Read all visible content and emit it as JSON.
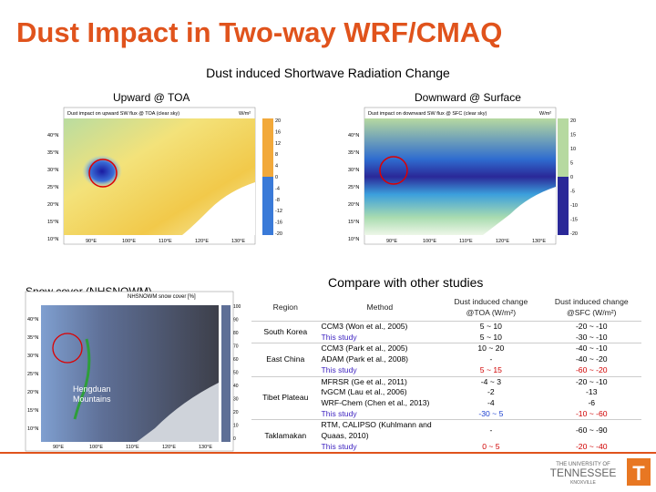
{
  "header": {
    "title": "Dust Impact in Two-way WRF/CMAQ",
    "subtitle": "Dust induced Shortwave Radiation Change"
  },
  "maps": {
    "toa": {
      "label": "Upward @ TOA",
      "caption": "Dust impact on upward SW flux @ TOA (clear sky)",
      "unit": "W/m²",
      "colorbar": [
        "20",
        "16",
        "12",
        "8",
        "4",
        "0",
        "-4",
        "-8",
        "-12",
        "-16",
        "-20"
      ]
    },
    "sfc": {
      "label": "Downward @ Surface",
      "caption": "Dust impact on downward SW flux @ SFC (clear sky)",
      "unit": "W/m²",
      "colorbar": [
        "20",
        "15",
        "10",
        "5",
        "0",
        "-5",
        "-10",
        "-15",
        "-20"
      ]
    },
    "lat_labels": [
      "40°N",
      "35°N",
      "30°N",
      "25°N",
      "20°N",
      "15°N",
      "10°N"
    ],
    "lon_labels": [
      "90°E",
      "100°E",
      "110°E",
      "120°E",
      "130°E"
    ],
    "snow": {
      "label": "Snow cover (NHSNOWM)",
      "caption": "NHSNOWM snow cover [%]",
      "annotation": [
        "Hengduan",
        "Mountains"
      ],
      "colorbar": [
        "100",
        "90",
        "80",
        "70",
        "60",
        "50",
        "40",
        "30",
        "20",
        "10",
        "0"
      ]
    }
  },
  "comparison": {
    "title": "Compare with other studies",
    "columns": [
      "Region",
      "Method",
      "Dust induced change @TOA (W/m²)",
      "Dust induced change @SFC (W/m²)"
    ],
    "rows": [
      {
        "region": "South Korea",
        "studies": [
          {
            "method": "CCM3 (Won et al., 2005)",
            "toa": "5 ~ 10",
            "sfc": "-20 ~ -10"
          },
          {
            "method": "This study",
            "toa": "5 ~ 10",
            "sfc": "-30 ~ -10"
          }
        ]
      },
      {
        "region": "East China",
        "studies": [
          {
            "method": "CCM3 (Park et al., 2005)",
            "toa": "10 ~ 20",
            "sfc": "-40 ~ -10"
          },
          {
            "method": "ADAM (Park et al., 2008)",
            "toa": "-",
            "sfc": "-40 ~ -20"
          },
          {
            "method": "This study",
            "toa": "5 ~ 15",
            "sfc": "-60 ~ -20",
            "toa_color": "#d00000",
            "sfc_color": "#d00000"
          }
        ]
      },
      {
        "region": "Tibet Plateau",
        "studies": [
          {
            "method": "MFRSR (Ge et al., 2011)",
            "toa": "-4 ~ 3",
            "sfc": "-20 ~ -10"
          },
          {
            "method": "fvGCM (Lau et al., 2006)",
            "toa": "-2",
            "sfc": "-13"
          },
          {
            "method": "WRF-Chem (Chen et al., 2013)",
            "toa": "-4",
            "sfc": "-6"
          },
          {
            "method": "This study",
            "toa": "-30 ~ 5",
            "sfc": "-10 ~ -60",
            "toa_color": "#1a3fd0",
            "sfc_color": "#d00000"
          }
        ]
      },
      {
        "region": "Taklamakan",
        "studies": [
          {
            "method": "RTM, CALIPSO (Kuhlmann and Quaas, 2010)",
            "toa": "-",
            "sfc": "-60 ~ -90"
          },
          {
            "method": "This study",
            "toa": "0 ~ 5",
            "sfc": "-20 ~ -40",
            "toa_color": "#d00000",
            "sfc_color": "#d00000"
          }
        ]
      }
    ]
  },
  "footer": {
    "logo": [
      "THE UNIVERSITY OF",
      "TENNESSEE",
      "KNOXVILLE"
    ],
    "mark": "T"
  }
}
